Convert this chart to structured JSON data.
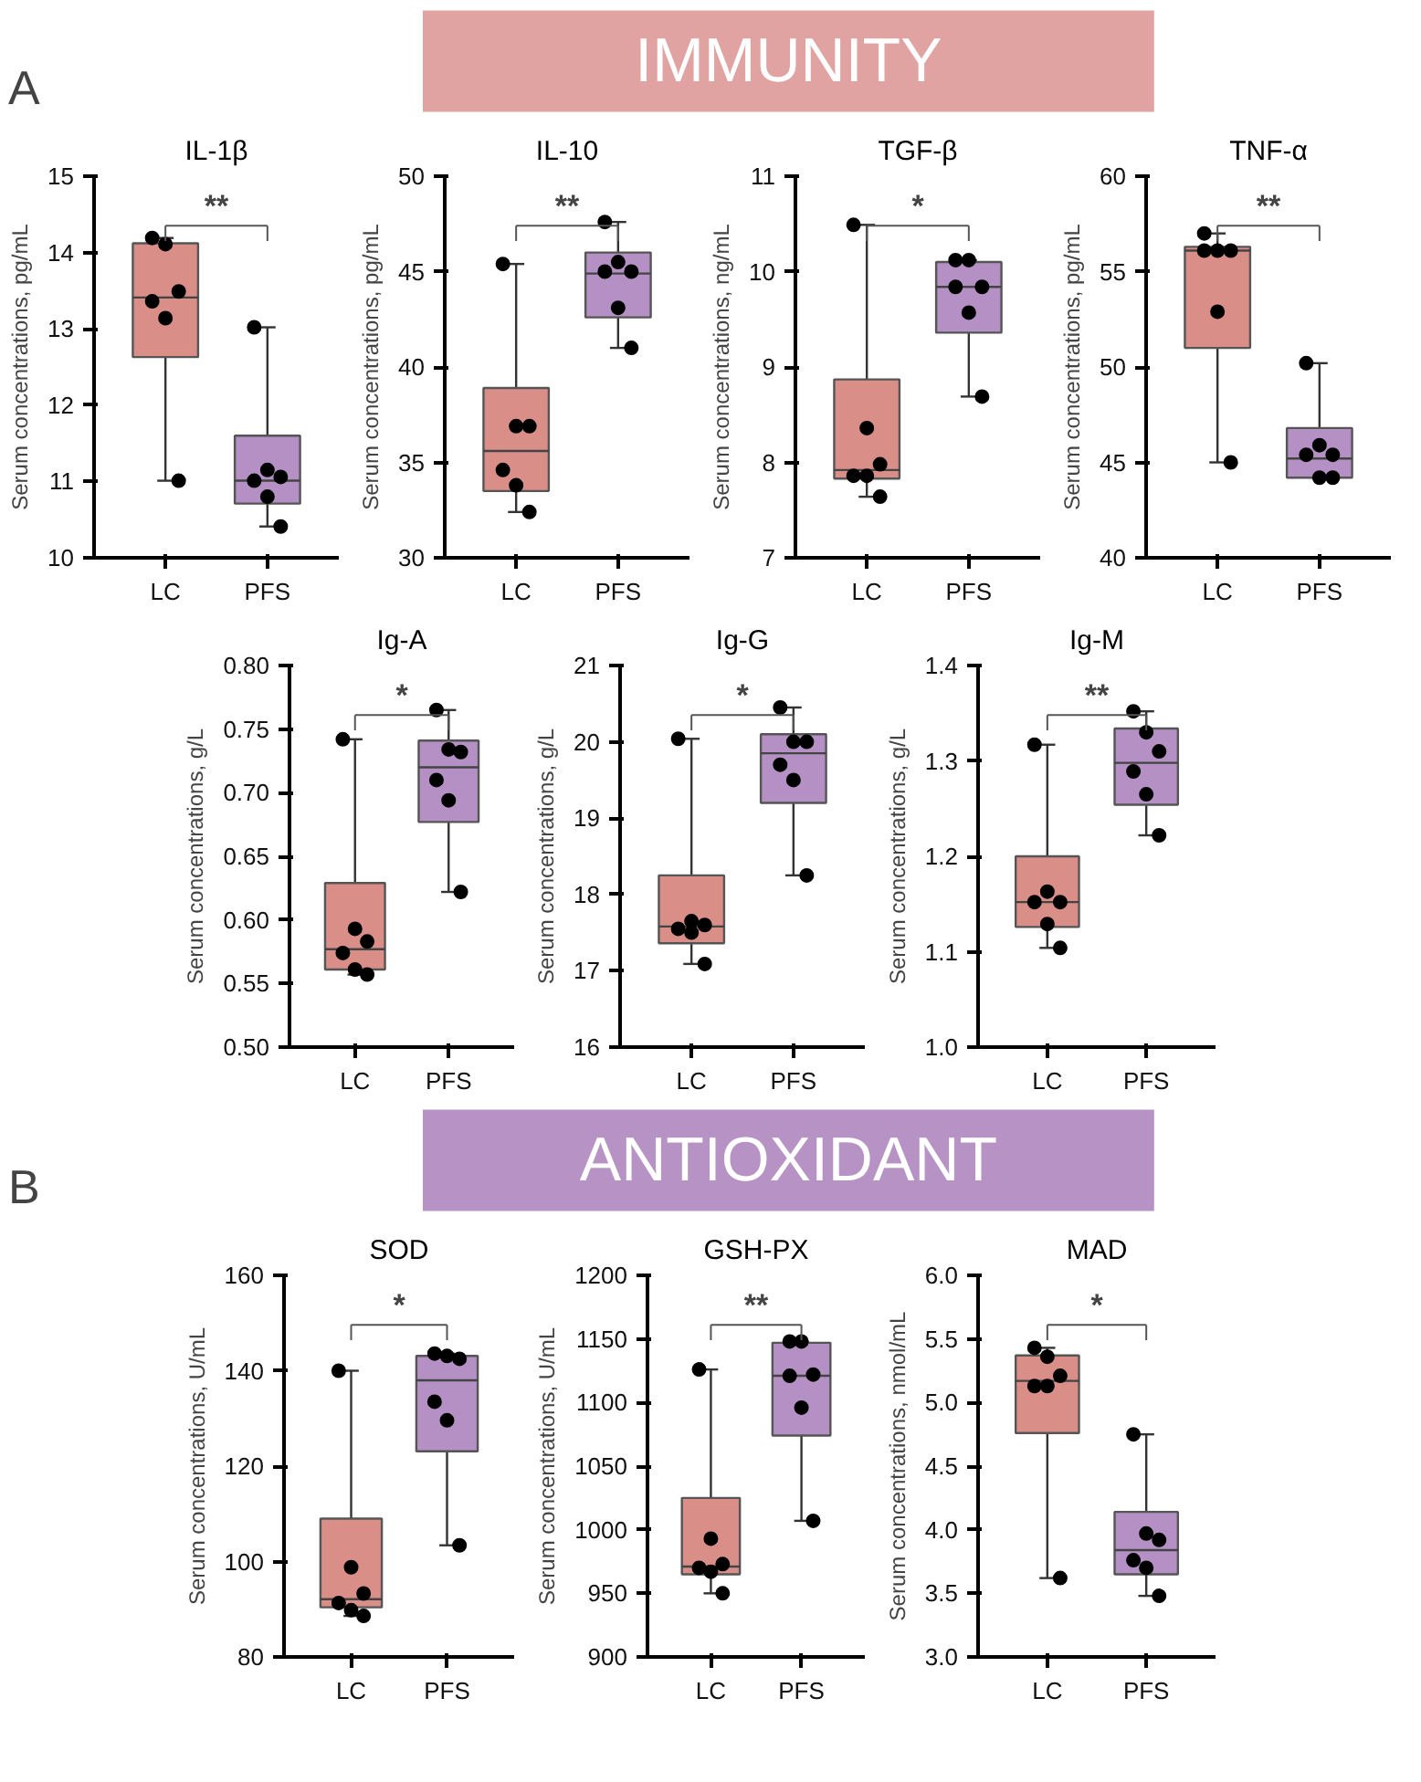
{
  "chart_data": [
    {
      "type": "other",
      "title": "IMMUNITY",
      "color": "#e0a3a1",
      "annotations": [
        "A"
      ]
    },
    {
      "type": "box",
      "title": "IL-1β",
      "ylabel": "Serum concentrations, pg/mL",
      "categories": [
        "LC",
        "PFS"
      ],
      "colors": [
        "#d98e88",
        "#b590c4"
      ],
      "ylim": [
        10,
        15
      ],
      "yticks": [
        10,
        11,
        12,
        13,
        14,
        15
      ],
      "grid": false,
      "marker": "circle",
      "annotations": [
        "**"
      ],
      "boxes": [
        {
          "low": 11.01,
          "q1": 12.63,
          "median": 13.41,
          "q3": 14.12,
          "high": 14.19
        },
        {
          "low": 10.41,
          "q1": 10.71,
          "median": 11.01,
          "q3": 11.6,
          "high": 13.02
        }
      ],
      "series": [
        {
          "type": "scatter",
          "color": "#000000",
          "x": [
            "LC",
            "LC",
            "LC",
            "LC",
            "LC",
            "LC",
            "PFS",
            "PFS",
            "PFS",
            "PFS",
            "PFS",
            "PFS"
          ],
          "values": [
            14.19,
            14.11,
            13.49,
            13.36,
            13.14,
            11.01,
            13.02,
            11.15,
            11.06,
            11.01,
            10.8,
            10.41
          ]
        }
      ]
    },
    {
      "type": "box",
      "title": "IL-10",
      "ylabel": "Serum concentrations, pg/mL",
      "categories": [
        "LC",
        "PFS"
      ],
      "colors": [
        "#d98e88",
        "#b590c4"
      ],
      "ylim": [
        30,
        50
      ],
      "yticks": [
        30,
        35,
        40,
        45,
        50
      ],
      "grid": false,
      "marker": "circle",
      "annotations": [
        "**"
      ],
      "boxes": [
        {
          "low": 32.4,
          "q1": 33.5,
          "median": 35.6,
          "q3": 38.9,
          "high": 45.4
        },
        {
          "low": 41.0,
          "q1": 42.6,
          "median": 44.9,
          "q3": 46.0,
          "high": 47.6
        }
      ],
      "series": [
        {
          "type": "scatter",
          "color": "#000000",
          "x": [
            "LC",
            "LC",
            "LC",
            "LC",
            "LC",
            "LC",
            "PFS",
            "PFS",
            "PFS",
            "PFS",
            "PFS",
            "PFS"
          ],
          "values": [
            45.4,
            36.9,
            36.9,
            34.6,
            33.8,
            32.4,
            47.6,
            45.5,
            45.0,
            45.0,
            43.1,
            41.0
          ]
        }
      ]
    },
    {
      "type": "box",
      "title": "TGF-β",
      "ylabel": "Serum concentrations, ng/mL",
      "categories": [
        "LC",
        "PFS"
      ],
      "colors": [
        "#d98e88",
        "#b590c4"
      ],
      "ylim": [
        7,
        11
      ],
      "yticks": [
        7,
        8,
        9,
        10,
        11
      ],
      "grid": false,
      "marker": "circle",
      "annotations": [
        "*"
      ],
      "boxes": [
        {
          "low": 7.64,
          "q1": 7.83,
          "median": 7.92,
          "q3": 8.87,
          "high": 10.49
        },
        {
          "low": 8.69,
          "q1": 9.36,
          "median": 9.84,
          "q3": 10.1,
          "high": 10.12
        }
      ],
      "series": [
        {
          "type": "scatter",
          "color": "#000000",
          "x": [
            "LC",
            "LC",
            "LC",
            "LC",
            "LC",
            "LC",
            "PFS",
            "PFS",
            "PFS",
            "PFS",
            "PFS",
            "PFS"
          ],
          "values": [
            10.49,
            8.36,
            7.98,
            7.86,
            7.86,
            7.64,
            10.12,
            10.12,
            9.84,
            9.84,
            9.57,
            8.69
          ]
        }
      ]
    },
    {
      "type": "box",
      "title": "TNF-α",
      "ylabel": "Serum concentrations, pg/mL",
      "categories": [
        "LC",
        "PFS"
      ],
      "colors": [
        "#d98e88",
        "#b590c4"
      ],
      "ylim": [
        40,
        60
      ],
      "yticks": [
        40,
        45,
        50,
        55,
        60
      ],
      "grid": false,
      "marker": "circle",
      "annotations": [
        "**"
      ],
      "boxes": [
        {
          "low": 45.0,
          "q1": 51.0,
          "median": 56.1,
          "q3": 56.3,
          "high": 57.0
        },
        {
          "low": 44.2,
          "q1": 44.2,
          "median": 45.2,
          "q3": 46.8,
          "high": 50.2
        }
      ],
      "series": [
        {
          "type": "scatter",
          "color": "#000000",
          "x": [
            "LC",
            "LC",
            "LC",
            "LC",
            "LC",
            "LC",
            "PFS",
            "PFS",
            "PFS",
            "PFS",
            "PFS",
            "PFS"
          ],
          "values": [
            57.0,
            56.1,
            56.1,
            56.1,
            52.9,
            45.0,
            50.2,
            45.9,
            45.4,
            45.4,
            44.2,
            44.2
          ]
        }
      ]
    },
    {
      "type": "box",
      "title": "Ig-A",
      "ylabel": "Serum concentrations, g/L",
      "categories": [
        "LC",
        "PFS"
      ],
      "colors": [
        "#d98e88",
        "#b590c4"
      ],
      "ylim": [
        0.5,
        0.8
      ],
      "yticks": [
        {
          "value": 0.5,
          "label": "0.50"
        },
        {
          "value": 0.55,
          "label": "0.55"
        },
        {
          "value": 0.6,
          "label": "0.60"
        },
        {
          "value": 0.65,
          "label": "0.65"
        },
        {
          "value": 0.7,
          "label": "0.70"
        },
        {
          "value": 0.75,
          "label": "0.75"
        },
        {
          "value": 0.8,
          "label": "0.80"
        }
      ],
      "grid": false,
      "marker": "circle",
      "annotations": [
        "*"
      ],
      "boxes": [
        {
          "low": 0.557,
          "q1": 0.561,
          "median": 0.577,
          "q3": 0.629,
          "high": 0.742
        },
        {
          "low": 0.622,
          "q1": 0.677,
          "median": 0.72,
          "q3": 0.741,
          "high": 0.765
        }
      ],
      "series": [
        {
          "type": "scatter",
          "color": "#000000",
          "x": [
            "LC",
            "LC",
            "LC",
            "LC",
            "LC",
            "LC",
            "PFS",
            "PFS",
            "PFS",
            "PFS",
            "PFS",
            "PFS"
          ],
          "values": [
            0.742,
            0.593,
            0.583,
            0.574,
            0.561,
            0.557,
            0.765,
            0.734,
            0.732,
            0.71,
            0.694,
            0.622
          ]
        }
      ]
    },
    {
      "type": "box",
      "title": "Ig-G",
      "ylabel": "Serum concentrations, g/L",
      "categories": [
        "LC",
        "PFS"
      ],
      "colors": [
        "#d98e88",
        "#b590c4"
      ],
      "ylim": [
        16,
        21
      ],
      "yticks": [
        16,
        17,
        18,
        19,
        20,
        21
      ],
      "grid": false,
      "marker": "circle",
      "annotations": [
        "*"
      ],
      "boxes": [
        {
          "low": 17.09,
          "q1": 17.36,
          "median": 17.58,
          "q3": 18.25,
          "high": 20.04
        },
        {
          "low": 18.25,
          "q1": 19.2,
          "median": 19.85,
          "q3": 20.1,
          "high": 20.45
        }
      ],
      "series": [
        {
          "type": "scatter",
          "color": "#000000",
          "x": [
            "LC",
            "LC",
            "LC",
            "LC",
            "LC",
            "LC",
            "PFS",
            "PFS",
            "PFS",
            "PFS",
            "PFS",
            "PFS"
          ],
          "values": [
            20.04,
            17.65,
            17.6,
            17.55,
            17.5,
            17.09,
            20.45,
            20.0,
            20.0,
            19.7,
            19.5,
            18.25
          ]
        }
      ]
    },
    {
      "type": "box",
      "title": "Ig-M",
      "ylabel": "Serum concentrations, g/L",
      "categories": [
        "LC",
        "PFS"
      ],
      "colors": [
        "#d98e88",
        "#b590c4"
      ],
      "ylim": [
        1.0,
        1.4
      ],
      "yticks": [
        {
          "value": 1.0,
          "label": "1.0"
        },
        {
          "value": 1.1,
          "label": "1.1"
        },
        {
          "value": 1.2,
          "label": "1.2"
        },
        {
          "value": 1.3,
          "label": "1.3"
        },
        {
          "value": 1.4,
          "label": "1.4"
        }
      ],
      "grid": false,
      "marker": "circle",
      "annotations": [
        "**"
      ],
      "boxes": [
        {
          "low": 1.104,
          "q1": 1.126,
          "median": 1.152,
          "q3": 1.2,
          "high": 1.317
        },
        {
          "low": 1.222,
          "q1": 1.254,
          "median": 1.298,
          "q3": 1.334,
          "high": 1.352
        }
      ],
      "series": [
        {
          "type": "scatter",
          "color": "#000000",
          "x": [
            "LC",
            "LC",
            "LC",
            "LC",
            "LC",
            "LC",
            "PFS",
            "PFS",
            "PFS",
            "PFS",
            "PFS",
            "PFS"
          ],
          "values": [
            1.317,
            1.163,
            1.152,
            1.152,
            1.129,
            1.104,
            1.352,
            1.33,
            1.31,
            1.289,
            1.265,
            1.222
          ]
        }
      ]
    },
    {
      "type": "other",
      "title": "ANTIOXIDANT",
      "color": "#b793c5",
      "annotations": [
        "B"
      ]
    },
    {
      "type": "box",
      "title": "SOD",
      "ylabel": "Serum concentrations, U/mL",
      "categories": [
        "LC",
        "PFS"
      ],
      "colors": [
        "#d98e88",
        "#b590c4"
      ],
      "ylim": [
        80,
        160
      ],
      "yticks": [
        80,
        100,
        120,
        140,
        160
      ],
      "grid": false,
      "marker": "circle",
      "annotations": [
        "*"
      ],
      "boxes": [
        {
          "low": 88.6,
          "q1": 90.4,
          "median": 92.1,
          "q3": 109.0,
          "high": 140.0
        },
        {
          "low": 103.4,
          "q1": 123.1,
          "median": 138.0,
          "q3": 143.1,
          "high": 143.6
        }
      ],
      "series": [
        {
          "type": "scatter",
          "color": "#000000",
          "x": [
            "LC",
            "LC",
            "LC",
            "LC",
            "LC",
            "LC",
            "PFS",
            "PFS",
            "PFS",
            "PFS",
            "PFS",
            "PFS"
          ],
          "values": [
            140.0,
            98.8,
            93.3,
            91.3,
            89.8,
            88.6,
            143.6,
            143.1,
            142.5,
            133.5,
            129.6,
            103.4
          ]
        }
      ]
    },
    {
      "type": "box",
      "title": "GSH-PX",
      "ylabel": "Serum concentrations, U/mL",
      "categories": [
        "LC",
        "PFS"
      ],
      "colors": [
        "#d98e88",
        "#b590c4"
      ],
      "ylim": [
        900,
        1200
      ],
      "yticks": [
        900,
        950,
        1000,
        1050,
        1100,
        1150,
        1200
      ],
      "grid": false,
      "marker": "circle",
      "annotations": [
        "**"
      ],
      "boxes": [
        {
          "low": 950,
          "q1": 965,
          "median": 971,
          "q3": 1025,
          "high": 1126
        },
        {
          "low": 1007,
          "q1": 1074,
          "median": 1121,
          "q3": 1147,
          "high": 1148
        }
      ],
      "series": [
        {
          "type": "scatter",
          "color": "#000000",
          "x": [
            "LC",
            "LC",
            "LC",
            "LC",
            "LC",
            "LC",
            "PFS",
            "PFS",
            "PFS",
            "PFS",
            "PFS",
            "PFS"
          ],
          "values": [
            1126,
            993,
            973,
            970,
            967,
            950,
            1148,
            1148,
            1122,
            1121,
            1096,
            1007
          ]
        }
      ]
    },
    {
      "type": "box",
      "title": "MAD",
      "ylabel": "Serum concentrations, nmol/mL",
      "categories": [
        "LC",
        "PFS"
      ],
      "colors": [
        "#d98e88",
        "#b590c4"
      ],
      "ylim": [
        3.0,
        6.0
      ],
      "yticks": [
        {
          "value": 3.0,
          "label": "3.0"
        },
        {
          "value": 3.5,
          "label": "3.5"
        },
        {
          "value": 4.0,
          "label": "4.0"
        },
        {
          "value": 4.5,
          "label": "4.5"
        },
        {
          "value": 5.0,
          "label": "5.0"
        },
        {
          "value": 5.5,
          "label": "5.5"
        },
        {
          "value": 6.0,
          "label": "6.0"
        }
      ],
      "grid": false,
      "marker": "circle",
      "annotations": [
        "*"
      ],
      "boxes": [
        {
          "low": 3.62,
          "q1": 4.76,
          "median": 5.17,
          "q3": 5.37,
          "high": 5.43
        },
        {
          "low": 3.48,
          "q1": 3.65,
          "median": 3.84,
          "q3": 4.14,
          "high": 4.75
        }
      ],
      "series": [
        {
          "type": "scatter",
          "color": "#000000",
          "x": [
            "LC",
            "LC",
            "LC",
            "LC",
            "LC",
            "LC",
            "PFS",
            "PFS",
            "PFS",
            "PFS",
            "PFS",
            "PFS"
          ],
          "values": [
            5.43,
            5.36,
            5.21,
            5.13,
            5.13,
            3.62,
            4.75,
            3.97,
            3.92,
            3.76,
            3.7,
            3.48
          ]
        }
      ]
    }
  ]
}
